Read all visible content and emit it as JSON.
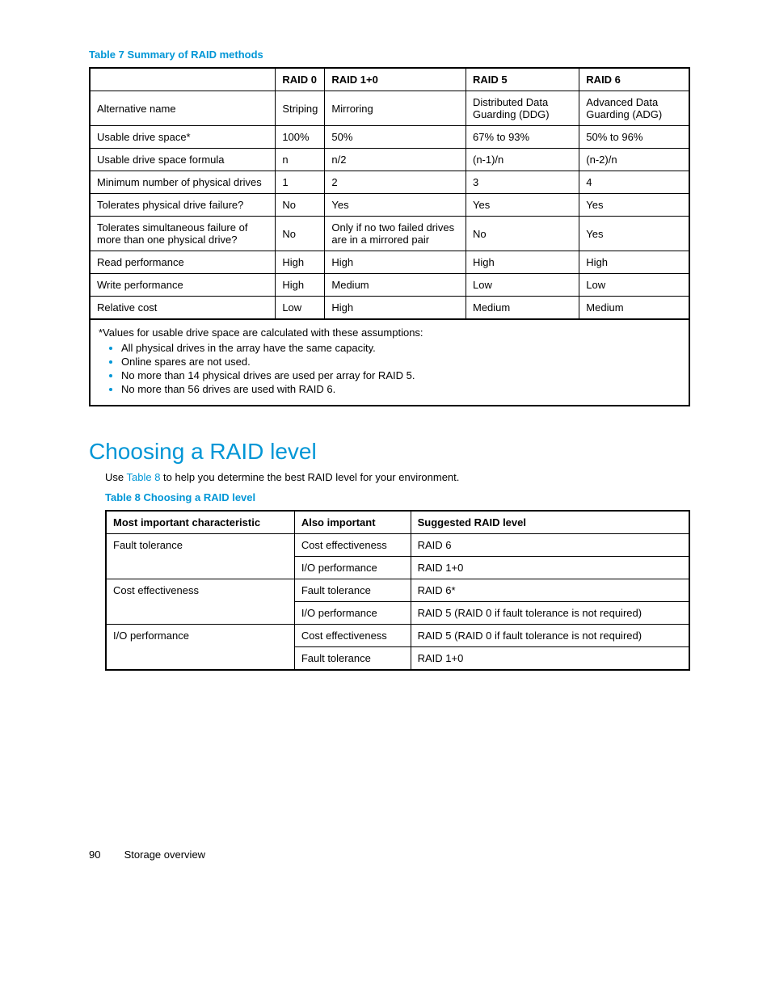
{
  "table7": {
    "caption": "Table 7 Summary of RAID methods",
    "headers": [
      "",
      "RAID 0",
      "RAID 1+0",
      "RAID 5",
      "RAID 6"
    ],
    "rows": [
      [
        "Alternative name",
        "Striping",
        "Mirroring",
        "Distributed Data Guarding (DDG)",
        "Advanced Data Guarding (ADG)"
      ],
      [
        "Usable drive space*",
        "100%",
        "50%",
        "67% to 93%",
        "50% to 96%"
      ],
      [
        "Usable drive space formula",
        "n",
        "n/2",
        "(n-1)/n",
        "(n-2)/n"
      ],
      [
        "Minimum number of physical drives",
        "1",
        "2",
        "3",
        "4"
      ],
      [
        "Tolerates physical drive failure?",
        "No",
        "Yes",
        "Yes",
        "Yes"
      ],
      [
        "Tolerates simultaneous failure of more than one physical drive?",
        "No",
        "Only if no two failed drives are in a mirrored pair",
        "No",
        "Yes"
      ],
      [
        "Read performance",
        "High",
        "High",
        "High",
        "High"
      ],
      [
        "Write performance",
        "High",
        "Medium",
        "Low",
        "Low"
      ],
      [
        "Relative cost",
        "Low",
        "High",
        "Medium",
        "Medium"
      ]
    ],
    "footnote_lead": "*Values for usable drive space are calculated with these assumptions:",
    "footnote_items": [
      "All physical drives in the array have the same capacity.",
      "Online spares are not used.",
      "No more than 14 physical drives are used per array for RAID 5.",
      "No more than 56 drives are used with RAID 6."
    ]
  },
  "section_heading": "Choosing a RAID level",
  "body_text_pre": "Use ",
  "body_text_link": "Table 8",
  "body_text_post": " to help you determine the best RAID level for your environment.",
  "table8": {
    "caption": "Table 8 Choosing a RAID level",
    "headers": [
      "Most important characteristic",
      "Also important",
      "Suggested RAID level"
    ],
    "rows": [
      {
        "main": "Fault tolerance",
        "rowspan": 2,
        "also": "Cost effectiveness",
        "suggested": "RAID 6"
      },
      {
        "main": null,
        "also": "I/O performance",
        "suggested": "RAID 1+0"
      },
      {
        "main": "Cost effectiveness",
        "rowspan": 2,
        "also": "Fault tolerance",
        "suggested": "RAID 6*"
      },
      {
        "main": null,
        "also": "I/O performance",
        "suggested": "RAID 5 (RAID 0 if fault tolerance is not required)"
      },
      {
        "main": "I/O performance",
        "rowspan": 2,
        "also": "Cost effectiveness",
        "suggested": "RAID 5 (RAID 0 if fault tolerance is not required)"
      },
      {
        "main": null,
        "also": "Fault tolerance",
        "suggested": "RAID 1+0"
      }
    ]
  },
  "footer": {
    "page_number": "90",
    "section": "Storage overview"
  }
}
